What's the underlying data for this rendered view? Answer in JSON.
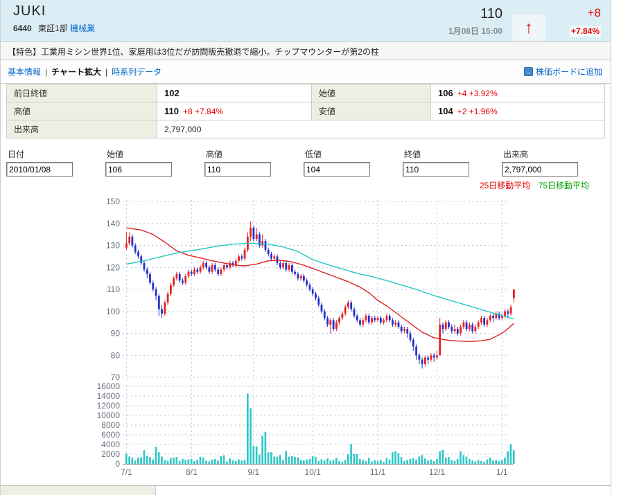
{
  "header": {
    "title": "JUKI",
    "code": "6440",
    "market": "東証1部",
    "industry": "機械業",
    "price": "110",
    "datetime": "1月08日 15:00",
    "change": "+8",
    "change_pct": "+7.84%",
    "arrow": "↑"
  },
  "feature": {
    "text": "【特色】工業用ミシン世界1位、家庭用は3位だが訪問販売撤退で縮小。チップマウンターが第2の柱"
  },
  "nav": {
    "basic_info": "基本情報",
    "chart_zoom": "チャート拡大",
    "time_series": "時系列データ",
    "separator": "|",
    "board_icon": "→",
    "add_to_board": "株価ボードに追加"
  },
  "quote": {
    "prev_close": {
      "label": "前日終値",
      "value": "102",
      "change": ""
    },
    "open": {
      "label": "始値",
      "value": "106",
      "change": "+4 +3.92%"
    },
    "high": {
      "label": "高値",
      "value": "110",
      "change": "+8 +7.84%"
    },
    "low": {
      "label": "安値",
      "value": "104",
      "change": "+2 +1.96%"
    },
    "volume": {
      "label": "出来高",
      "value": "2,797,000",
      "change": ""
    }
  },
  "inputs": [
    {
      "label": "日付",
      "value": "2010/01/08"
    },
    {
      "label": "始値",
      "value": "106"
    },
    {
      "label": "高値",
      "value": "110"
    },
    {
      "label": "低値",
      "value": "104"
    },
    {
      "label": "終値",
      "value": "110"
    },
    {
      "label": "出来高",
      "value": "2,797,000"
    }
  ],
  "legend": {
    "ma25": {
      "label": "25日移動平均",
      "color": "#e60000"
    },
    "ma75": {
      "label": "75日移動平均",
      "color": "#00a000"
    }
  },
  "chart_data": {
    "type": "candlestick",
    "price_axis": {
      "min": 70,
      "max": 150,
      "step": 10
    },
    "volume_axis": {
      "min": 0,
      "max": 16000,
      "step": 2000
    },
    "x_labels": [
      "7/1",
      "8/1",
      "9/1",
      "10/1",
      "11/1",
      "12/1",
      "1/1"
    ],
    "month_start_days": [
      0,
      22,
      43,
      63,
      85,
      105,
      127
    ],
    "colors": {
      "up": "#e62020",
      "down": "#2330cc",
      "ma25": "#dd2222",
      "ma75": "#25c6c6",
      "volume": "#2cc7c7",
      "grid": "#b6c3d9",
      "axis_text": "#666f7c",
      "baseline": "#888888"
    },
    "ohlc": [
      [
        129,
        136,
        128,
        131
      ],
      [
        131,
        136,
        130,
        134
      ],
      [
        134,
        135,
        129,
        130
      ],
      [
        130,
        131,
        126,
        127
      ],
      [
        127,
        128,
        124,
        125
      ],
      [
        125,
        126,
        121,
        122
      ],
      [
        122,
        123,
        118,
        119
      ],
      [
        119,
        120,
        115,
        117
      ],
      [
        117,
        118,
        112,
        113
      ],
      [
        113,
        114,
        109,
        110
      ],
      [
        110,
        111,
        105,
        107
      ],
      [
        107,
        108,
        98,
        101
      ],
      [
        101,
        103,
        97,
        99
      ],
      [
        99,
        105,
        98,
        104
      ],
      [
        104,
        109,
        103,
        108
      ],
      [
        108,
        113,
        107,
        112
      ],
      [
        112,
        116,
        111,
        115
      ],
      [
        115,
        118,
        114,
        117
      ],
      [
        117,
        118,
        113,
        114
      ],
      [
        114,
        115,
        112,
        113
      ],
      [
        113,
        117,
        112,
        116
      ],
      [
        116,
        119,
        115,
        118
      ],
      [
        118,
        119,
        116,
        117
      ],
      [
        117,
        120,
        116,
        119
      ],
      [
        119,
        120,
        117,
        118
      ],
      [
        118,
        121,
        117,
        120
      ],
      [
        120,
        123,
        119,
        122
      ],
      [
        122,
        123,
        119,
        120
      ],
      [
        120,
        121,
        117,
        118
      ],
      [
        118,
        122,
        117,
        121
      ],
      [
        121,
        122,
        118,
        119
      ],
      [
        119,
        120,
        116,
        117
      ],
      [
        117,
        120,
        116,
        119
      ],
      [
        119,
        122,
        118,
        121
      ],
      [
        121,
        122,
        119,
        120
      ],
      [
        120,
        123,
        119,
        122
      ],
      [
        122,
        123,
        120,
        121
      ],
      [
        121,
        124,
        120,
        123
      ],
      [
        123,
        126,
        122,
        125
      ],
      [
        125,
        126,
        123,
        124
      ],
      [
        124,
        129,
        123,
        128
      ],
      [
        128,
        136,
        127,
        134
      ],
      [
        134,
        141,
        132,
        138
      ],
      [
        138,
        139,
        132,
        133
      ],
      [
        133,
        138,
        132,
        135
      ],
      [
        135,
        136,
        129,
        130
      ],
      [
        130,
        135,
        129,
        132
      ],
      [
        132,
        133,
        127,
        128
      ],
      [
        128,
        129,
        125,
        126
      ],
      [
        126,
        127,
        123,
        124
      ],
      [
        124,
        126,
        123,
        125
      ],
      [
        125,
        126,
        121,
        122
      ],
      [
        122,
        123,
        119,
        120
      ],
      [
        120,
        123,
        119,
        122
      ],
      [
        122,
        123,
        118,
        119
      ],
      [
        119,
        122,
        118,
        121
      ],
      [
        121,
        122,
        117,
        118
      ],
      [
        118,
        119,
        116,
        117
      ],
      [
        117,
        118,
        114,
        115
      ],
      [
        115,
        117,
        114,
        116
      ],
      [
        116,
        117,
        113,
        114
      ],
      [
        114,
        115,
        111,
        112
      ],
      [
        112,
        113,
        109,
        110
      ],
      [
        110,
        111,
        107,
        108
      ],
      [
        108,
        109,
        105,
        106
      ],
      [
        106,
        107,
        102,
        103
      ],
      [
        103,
        104,
        99,
        100
      ],
      [
        100,
        101,
        96,
        97
      ],
      [
        97,
        98,
        93,
        94
      ],
      [
        94,
        97,
        90,
        96
      ],
      [
        96,
        97,
        91,
        92
      ],
      [
        92,
        96,
        91,
        95
      ],
      [
        95,
        98,
        94,
        97
      ],
      [
        97,
        100,
        96,
        99
      ],
      [
        99,
        103,
        98,
        102
      ],
      [
        102,
        105,
        101,
        104
      ],
      [
        104,
        105,
        100,
        101
      ],
      [
        101,
        102,
        97,
        98
      ],
      [
        98,
        99,
        95,
        96
      ],
      [
        96,
        97,
        93,
        94
      ],
      [
        94,
        97,
        93,
        96
      ],
      [
        96,
        99,
        95,
        98
      ],
      [
        98,
        99,
        94,
        95
      ],
      [
        95,
        98,
        94,
        97
      ],
      [
        97,
        98,
        95,
        96
      ],
      [
        96,
        98,
        95,
        97
      ],
      [
        97,
        98,
        94,
        95
      ],
      [
        95,
        97,
        94,
        96
      ],
      [
        96,
        99,
        95,
        98
      ],
      [
        98,
        99,
        95,
        96
      ],
      [
        96,
        97,
        93,
        94
      ],
      [
        94,
        96,
        93,
        95
      ],
      [
        95,
        96,
        92,
        93
      ],
      [
        93,
        94,
        90,
        91
      ],
      [
        91,
        93,
        90,
        92
      ],
      [
        92,
        93,
        88,
        90
      ],
      [
        90,
        91,
        86,
        87
      ],
      [
        87,
        88,
        82,
        84
      ],
      [
        84,
        85,
        78,
        80
      ],
      [
        80,
        81,
        76,
        78
      ],
      [
        78,
        79,
        74,
        76
      ],
      [
        76,
        80,
        75,
        79
      ],
      [
        79,
        80,
        76,
        78
      ],
      [
        78,
        81,
        77,
        80
      ],
      [
        80,
        81,
        77,
        79
      ],
      [
        79,
        82,
        78,
        80
      ],
      [
        80,
        97,
        80,
        94
      ],
      [
        94,
        95,
        90,
        92
      ],
      [
        92,
        96,
        91,
        95
      ],
      [
        95,
        96,
        92,
        93
      ],
      [
        93,
        94,
        90,
        91
      ],
      [
        91,
        94,
        90,
        92
      ],
      [
        92,
        93,
        89,
        90
      ],
      [
        90,
        94,
        89,
        93
      ],
      [
        93,
        96,
        92,
        95
      ],
      [
        95,
        96,
        91,
        92
      ],
      [
        92,
        95,
        91,
        94
      ],
      [
        94,
        95,
        90,
        91
      ],
      [
        91,
        94,
        90,
        93
      ],
      [
        93,
        96,
        92,
        95
      ],
      [
        95,
        98,
        94,
        97
      ],
      [
        97,
        98,
        93,
        94
      ],
      [
        94,
        97,
        93,
        96
      ],
      [
        96,
        99,
        95,
        98
      ],
      [
        98,
        99,
        95,
        97
      ],
      [
        97,
        100,
        96,
        99
      ],
      [
        99,
        100,
        96,
        97
      ],
      [
        97,
        99,
        96,
        98
      ],
      [
        98,
        101,
        97,
        100
      ],
      [
        100,
        101,
        97,
        99
      ],
      [
        99,
        103,
        98,
        102
      ],
      [
        106,
        110,
        104,
        110
      ]
    ],
    "volume": [
      2100,
      1500,
      1300,
      700,
      1300,
      1350,
      2800,
      1600,
      1450,
      900,
      3500,
      2400,
      1500,
      800,
      650,
      1250,
      1300,
      1400,
      600,
      1000,
      800,
      900,
      1000,
      600,
      800,
      1450,
      1300,
      650,
      500,
      900,
      1000,
      650,
      1600,
      1750,
      500,
      1100,
      700,
      600,
      900,
      650,
      800,
      14500,
      11500,
      3700,
      3600,
      1900,
      5800,
      6600,
      2400,
      2400,
      1500,
      1450,
      1850,
      800,
      2650,
      1500,
      1550,
      1450,
      1350,
      800,
      700,
      900,
      1000,
      1550,
      1450,
      600,
      950,
      700,
      1100,
      650,
      850,
      1250,
      600,
      400,
      850,
      2000,
      4100,
      2050,
      2000,
      1000,
      800,
      600,
      1200,
      500,
      700,
      600,
      800,
      400,
      1200,
      900,
      2400,
      2600,
      2200,
      1400,
      600,
      800,
      1000,
      1200,
      900,
      1500,
      1800,
      1100,
      700,
      900,
      600,
      1000,
      2600,
      2900,
      1300,
      1400,
      800,
      600,
      1000,
      2600,
      1800,
      1500,
      1000,
      700,
      500,
      800,
      600,
      400,
      900,
      1300,
      700,
      800,
      600,
      800,
      1300,
      2600,
      4100,
      2797
    ],
    "ma25_points": [
      [
        0,
        138
      ],
      [
        5,
        137
      ],
      [
        9,
        135
      ],
      [
        13,
        131.5
      ],
      [
        17,
        127.5
      ],
      [
        21,
        125.5
      ],
      [
        25,
        124.3
      ],
      [
        29,
        123
      ],
      [
        33,
        122
      ],
      [
        37,
        121
      ],
      [
        40,
        120.7
      ],
      [
        44,
        121.5
      ],
      [
        48,
        123
      ],
      [
        52,
        123.3
      ],
      [
        56,
        122.5
      ],
      [
        60,
        121
      ],
      [
        63,
        119.5
      ],
      [
        67,
        117.5
      ],
      [
        71,
        115.5
      ],
      [
        75,
        113.5
      ],
      [
        79,
        111
      ],
      [
        82,
        108.5
      ],
      [
        85,
        105
      ],
      [
        88,
        102.5
      ],
      [
        92,
        98.5
      ],
      [
        96,
        94.5
      ],
      [
        100,
        90.5
      ],
      [
        104,
        88
      ],
      [
        108,
        87
      ],
      [
        112,
        86.5
      ],
      [
        116,
        86.3
      ],
      [
        120,
        86.6
      ],
      [
        123,
        87.3
      ],
      [
        126,
        89.3
      ],
      [
        128,
        91
      ],
      [
        131,
        94.5
      ]
    ],
    "ma75_points": [
      [
        0,
        121.5
      ],
      [
        6,
        123
      ],
      [
        12,
        125
      ],
      [
        18,
        126.8
      ],
      [
        24,
        128
      ],
      [
        30,
        129.5
      ],
      [
        36,
        130.6
      ],
      [
        42,
        131
      ],
      [
        48,
        130.6
      ],
      [
        53,
        129.3
      ],
      [
        58,
        127.2
      ],
      [
        63,
        123.5
      ],
      [
        68,
        121.3
      ],
      [
        73,
        119.3
      ],
      [
        78,
        117.3
      ],
      [
        83,
        115.8
      ],
      [
        88,
        114
      ],
      [
        93,
        112
      ],
      [
        98,
        110
      ],
      [
        103,
        107.6
      ],
      [
        108,
        105.6
      ],
      [
        113,
        103.6
      ],
      [
        118,
        101.6
      ],
      [
        122,
        100
      ],
      [
        126,
        98.4
      ],
      [
        129,
        97.3
      ],
      [
        131,
        96.5
      ]
    ]
  }
}
